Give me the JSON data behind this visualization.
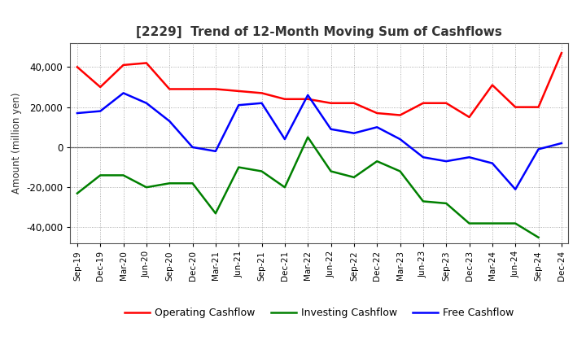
{
  "title": "[2229]  Trend of 12-Month Moving Sum of Cashflows",
  "ylabel": "Amount (million yen)",
  "xlabels": [
    "Sep-19",
    "Dec-19",
    "Mar-20",
    "Jun-20",
    "Sep-20",
    "Dec-20",
    "Mar-21",
    "Jun-21",
    "Sep-21",
    "Dec-21",
    "Mar-22",
    "Jun-22",
    "Sep-22",
    "Dec-22",
    "Mar-23",
    "Jun-23",
    "Sep-23",
    "Dec-23",
    "Mar-24",
    "Jun-24",
    "Sep-24",
    "Dec-24"
  ],
  "operating": [
    40000,
    30000,
    41000,
    42000,
    29000,
    29000,
    29000,
    28000,
    27000,
    24000,
    24000,
    22000,
    22000,
    17000,
    16000,
    22000,
    22000,
    15000,
    31000,
    20000,
    20000,
    47000
  ],
  "investing": [
    -23000,
    -14000,
    -14000,
    -20000,
    -18000,
    -18000,
    -33000,
    -10000,
    -12000,
    -20000,
    5000,
    -12000,
    -15000,
    -7000,
    -12000,
    -27000,
    -28000,
    -38000,
    -38000,
    -38000,
    -45000,
    null
  ],
  "free": [
    17000,
    18000,
    27000,
    22000,
    13000,
    0,
    -2000,
    21000,
    22000,
    4000,
    26000,
    9000,
    7000,
    10000,
    4000,
    -5000,
    -7000,
    -5000,
    -8000,
    -21000,
    -1000,
    2000
  ],
  "ylim": [
    -48000,
    52000
  ],
  "yticks": [
    -40000,
    -20000,
    0,
    20000,
    40000
  ],
  "operating_color": "#ff0000",
  "investing_color": "#008000",
  "free_color": "#0000ff",
  "bg_color": "#ffffff",
  "grid_color": "#999999",
  "linewidth": 1.8,
  "legend_labels": [
    "Operating Cashflow",
    "Investing Cashflow",
    "Free Cashflow"
  ],
  "title_color": "#333333"
}
